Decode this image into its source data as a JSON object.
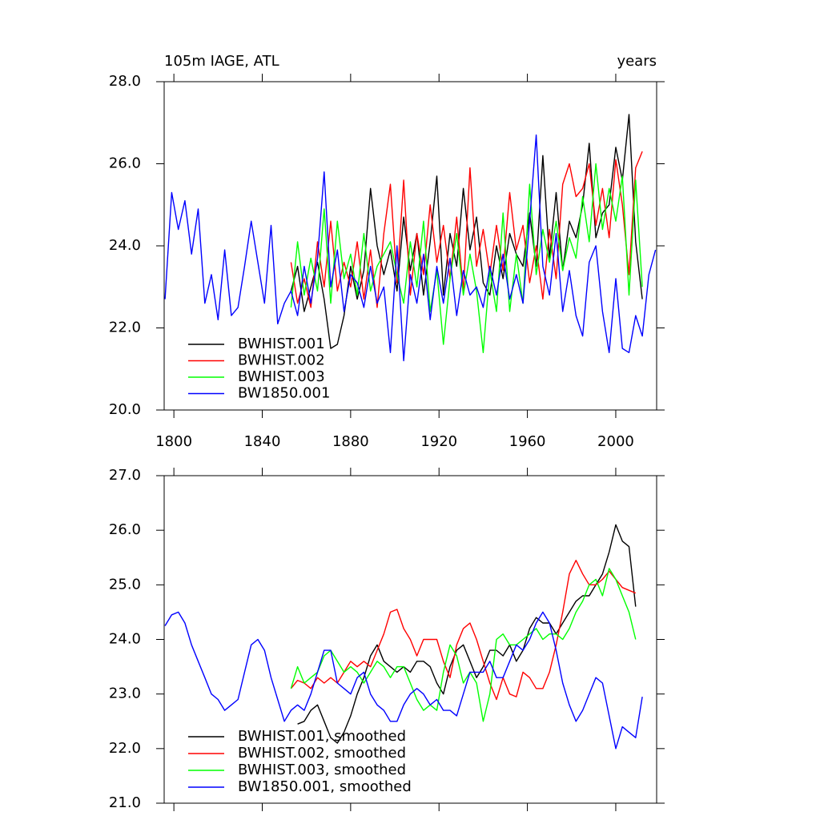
{
  "chart_data": [
    {
      "type": "line",
      "title": "105m IAGE, ATL",
      "units": "years",
      "x": [
        1796,
        1799,
        1802,
        1805,
        1808,
        1811,
        1814,
        1817,
        1820,
        1823,
        1826,
        1829,
        1832,
        1835,
        1838,
        1841,
        1844,
        1847,
        1850,
        1853,
        1856,
        1859,
        1862,
        1865,
        1868,
        1871,
        1874,
        1877,
        1880,
        1883,
        1886,
        1889,
        1892,
        1895,
        1898,
        1901,
        1904,
        1907,
        1910,
        1913,
        1916,
        1919,
        1922,
        1925,
        1928,
        1931,
        1934,
        1937,
        1940,
        1943,
        1946,
        1949,
        1952,
        1955,
        1958,
        1961,
        1964,
        1967,
        1970,
        1973,
        1976,
        1979,
        1982,
        1985,
        1988,
        1991,
        1994,
        1997,
        2000,
        2003,
        2006,
        2009,
        2012,
        2015,
        2018
      ],
      "xlim": [
        1795.6,
        2018.5
      ],
      "xticks": [
        1800,
        1840,
        1880,
        1920,
        1960,
        2000
      ],
      "ylim": [
        20,
        28
      ],
      "yticks": [
        {
          "value": 20,
          "label": "20.0"
        },
        {
          "value": 22,
          "label": "22.0"
        },
        {
          "value": 24,
          "label": "24.0"
        },
        {
          "value": 26,
          "label": "26.0"
        },
        {
          "value": 28,
          "label": "28.0"
        }
      ],
      "series": [
        {
          "name": "BWHIST.001",
          "color": "#000000",
          "values": [
            null,
            null,
            null,
            null,
            null,
            null,
            null,
            null,
            null,
            null,
            null,
            null,
            null,
            null,
            null,
            null,
            null,
            null,
            null,
            22.9,
            23.5,
            22.4,
            23.0,
            23.6,
            22.7,
            21.5,
            21.6,
            22.3,
            23.5,
            22.7,
            23.4,
            25.4,
            24.0,
            23.3,
            23.9,
            22.9,
            24.7,
            23.4,
            24.3,
            22.8,
            24.1,
            25.7,
            22.8,
            24.3,
            23.5,
            25.4,
            23.9,
            24.7,
            23.1,
            22.8,
            24.0,
            23.2,
            24.3,
            23.8,
            23.5,
            24.8,
            23.5,
            26.2,
            23.7,
            25.3,
            23.4,
            24.6,
            24.2,
            25.0,
            26.5,
            24.2,
            24.8,
            25.0,
            26.4,
            25.6,
            27.2,
            24.1,
            22.7,
            null,
            null
          ]
        },
        {
          "name": "BWHIST.002",
          "color": "#ff0000",
          "values": [
            null,
            null,
            null,
            null,
            null,
            null,
            null,
            null,
            null,
            null,
            null,
            null,
            null,
            null,
            null,
            null,
            null,
            null,
            null,
            23.6,
            22.6,
            23.2,
            22.5,
            24.1,
            23.0,
            24.6,
            22.9,
            23.6,
            23.0,
            24.1,
            22.7,
            23.9,
            22.5,
            24.3,
            25.5,
            23.1,
            25.6,
            22.8,
            24.3,
            23.3,
            25.0,
            23.6,
            24.5,
            23.2,
            24.7,
            22.9,
            25.9,
            23.5,
            24.4,
            23.3,
            24.5,
            23.4,
            25.3,
            23.9,
            24.5,
            23.1,
            24.0,
            22.7,
            24.4,
            23.2,
            25.5,
            26.0,
            25.2,
            25.4,
            26.0,
            24.5,
            25.4,
            24.2,
            26.1,
            25.0,
            23.3,
            25.9,
            26.3,
            null,
            null
          ]
        },
        {
          "name": "BWHIST.003",
          "color": "#00ff00",
          "values": [
            null,
            null,
            null,
            null,
            null,
            null,
            null,
            null,
            null,
            null,
            null,
            null,
            null,
            null,
            null,
            null,
            null,
            null,
            null,
            22.5,
            24.1,
            22.8,
            23.7,
            22.9,
            24.9,
            22.6,
            24.6,
            23.2,
            23.8,
            22.8,
            24.3,
            22.9,
            23.5,
            23.8,
            24.1,
            23.3,
            22.6,
            24.1,
            23.0,
            24.6,
            22.4,
            23.4,
            21.6,
            23.2,
            24.3,
            22.8,
            23.8,
            22.9,
            21.4,
            23.4,
            22.4,
            24.8,
            22.4,
            23.8,
            22.6,
            25.5,
            23.3,
            24.4,
            23.6,
            24.6,
            23.4,
            24.2,
            23.7,
            25.2,
            24.1,
            26.0,
            24.4,
            25.4,
            24.6,
            25.7,
            22.8,
            25.6,
            23.0,
            null,
            null
          ]
        },
        {
          "name": "BW1850.001",
          "color": "#0000ff",
          "values": [
            22.7,
            25.3,
            24.4,
            25.1,
            23.8,
            24.9,
            22.6,
            23.3,
            22.2,
            23.9,
            22.3,
            22.5,
            23.5,
            24.6,
            23.6,
            22.6,
            24.5,
            22.1,
            22.6,
            22.9,
            22.3,
            23.5,
            22.6,
            23.7,
            25.8,
            23.0,
            23.9,
            22.4,
            23.3,
            23.1,
            22.5,
            23.5,
            22.6,
            23.0,
            21.4,
            24.0,
            21.2,
            23.3,
            22.6,
            23.8,
            22.2,
            23.5,
            22.6,
            23.7,
            22.3,
            23.4,
            22.8,
            23.0,
            22.5,
            23.5,
            22.8,
            23.8,
            22.7,
            23.3,
            22.6,
            24.6,
            26.7,
            23.5,
            22.8,
            24.3,
            22.4,
            23.4,
            22.3,
            21.8,
            23.6,
            24.0,
            22.4,
            21.4,
            23.2,
            21.5,
            21.4,
            22.3,
            21.8,
            23.3,
            23.9
          ]
        }
      ]
    },
    {
      "type": "line",
      "x": [
        1796,
        1799,
        1802,
        1805,
        1808,
        1811,
        1814,
        1817,
        1820,
        1823,
        1826,
        1829,
        1832,
        1835,
        1838,
        1841,
        1844,
        1847,
        1850,
        1853,
        1856,
        1859,
        1862,
        1865,
        1868,
        1871,
        1874,
        1877,
        1880,
        1883,
        1886,
        1889,
        1892,
        1895,
        1898,
        1901,
        1904,
        1907,
        1910,
        1913,
        1916,
        1919,
        1922,
        1925,
        1928,
        1931,
        1934,
        1937,
        1940,
        1943,
        1946,
        1949,
        1952,
        1955,
        1958,
        1961,
        1964,
        1967,
        1970,
        1973,
        1976,
        1979,
        1982,
        1985,
        1988,
        1991,
        1994,
        1997,
        2000,
        2003,
        2006,
        2009,
        2012,
        2015,
        2018
      ],
      "xlim": [
        1795.6,
        2018.5
      ],
      "xticks": [
        1800,
        1840,
        1880,
        1920,
        1960,
        2000
      ],
      "ylim": [
        21,
        27
      ],
      "yticks": [
        {
          "value": 21,
          "label": "21.0"
        },
        {
          "value": 22,
          "label": "22.0"
        },
        {
          "value": 23,
          "label": "23.0"
        },
        {
          "value": 24,
          "label": "24.0"
        },
        {
          "value": 25,
          "label": "25.0"
        },
        {
          "value": 26,
          "label": "26.0"
        },
        {
          "value": 27,
          "label": "27.0"
        }
      ],
      "series": [
        {
          "name": "BWHIST.001, smoothed",
          "color": "#000000",
          "values": [
            null,
            null,
            null,
            null,
            null,
            null,
            null,
            null,
            null,
            null,
            null,
            null,
            null,
            null,
            null,
            null,
            null,
            null,
            null,
            null,
            22.45,
            22.5,
            22.7,
            22.8,
            22.5,
            22.2,
            22.1,
            22.3,
            22.6,
            23.0,
            23.3,
            23.7,
            23.9,
            23.6,
            23.5,
            23.4,
            23.5,
            23.4,
            23.6,
            23.6,
            23.5,
            23.2,
            23.0,
            23.5,
            23.8,
            23.9,
            23.6,
            23.3,
            23.5,
            23.8,
            23.8,
            23.7,
            23.9,
            23.6,
            23.8,
            24.2,
            24.4,
            24.3,
            24.3,
            24.1,
            24.3,
            24.5,
            24.7,
            24.8,
            24.8,
            25.0,
            25.2,
            25.6,
            26.1,
            25.8,
            25.7,
            24.6,
            null,
            null,
            null
          ]
        },
        {
          "name": "BWHIST.002, smoothed",
          "color": "#ff0000",
          "values": [
            null,
            null,
            null,
            null,
            null,
            null,
            null,
            null,
            null,
            null,
            null,
            null,
            null,
            null,
            null,
            null,
            null,
            null,
            null,
            23.1,
            23.25,
            23.2,
            23.1,
            23.3,
            23.2,
            23.3,
            23.2,
            23.4,
            23.6,
            23.5,
            23.6,
            23.5,
            23.8,
            24.1,
            24.5,
            24.55,
            24.2,
            24.0,
            23.7,
            24.0,
            24.0,
            24.0,
            23.6,
            23.3,
            23.9,
            24.2,
            24.3,
            24.0,
            23.6,
            23.2,
            22.9,
            23.3,
            23.0,
            22.95,
            23.4,
            23.3,
            23.1,
            23.1,
            23.4,
            23.9,
            24.5,
            25.2,
            25.45,
            25.2,
            25.0,
            25.0,
            25.1,
            25.25,
            25.1,
            24.95,
            24.9,
            24.85,
            null,
            null,
            null
          ]
        },
        {
          "name": "BWHIST.003, smoothed",
          "color": "#00ff00",
          "values": [
            null,
            null,
            null,
            null,
            null,
            null,
            null,
            null,
            null,
            null,
            null,
            null,
            null,
            null,
            null,
            null,
            null,
            null,
            null,
            23.1,
            23.5,
            23.2,
            23.3,
            23.4,
            23.7,
            23.8,
            23.6,
            23.4,
            23.5,
            23.4,
            23.2,
            23.4,
            23.6,
            23.5,
            23.3,
            23.5,
            23.5,
            23.2,
            22.9,
            22.7,
            22.8,
            22.7,
            23.4,
            23.9,
            23.7,
            23.2,
            23.4,
            23.2,
            22.5,
            23.0,
            24.0,
            24.1,
            23.9,
            23.9,
            24.0,
            24.1,
            24.2,
            24.0,
            24.1,
            24.1,
            24.0,
            24.2,
            24.5,
            24.7,
            25.0,
            25.1,
            24.8,
            25.3,
            25.1,
            24.8,
            24.5,
            24.0,
            null,
            null,
            null
          ]
        },
        {
          "name": "BW1850.001, smoothed",
          "color": "#0000ff",
          "values": [
            24.25,
            24.45,
            24.5,
            24.3,
            23.9,
            23.6,
            23.3,
            23.0,
            22.9,
            22.7,
            22.8,
            22.9,
            23.4,
            23.9,
            24.0,
            23.8,
            23.3,
            22.9,
            22.5,
            22.7,
            22.8,
            22.7,
            23.0,
            23.4,
            23.8,
            23.8,
            23.2,
            23.1,
            23.0,
            23.3,
            23.4,
            23.0,
            22.8,
            22.7,
            22.5,
            22.5,
            22.8,
            23.0,
            23.1,
            23.0,
            22.8,
            22.9,
            22.7,
            22.7,
            22.6,
            23.0,
            23.4,
            23.4,
            23.4,
            23.6,
            23.3,
            23.3,
            23.6,
            23.9,
            23.8,
            24.0,
            24.3,
            24.5,
            24.3,
            23.8,
            23.2,
            22.8,
            22.5,
            22.7,
            23.0,
            23.3,
            23.2,
            22.6,
            22.0,
            22.4,
            22.3,
            22.2,
            22.95,
            null,
            null
          ]
        }
      ]
    }
  ]
}
